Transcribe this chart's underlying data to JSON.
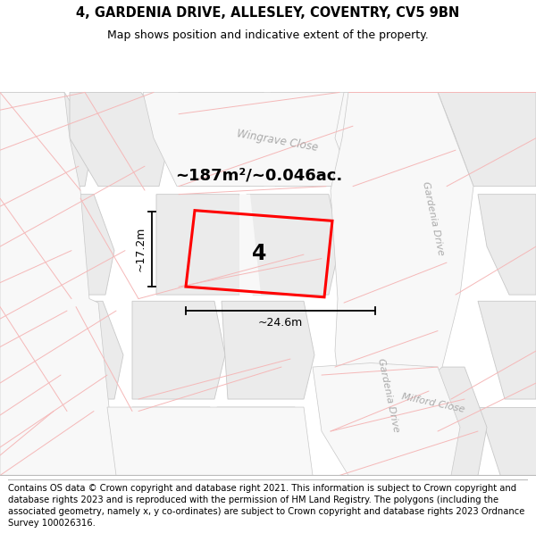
{
  "title": "4, GARDENIA DRIVE, ALLESLEY, COVENTRY, CV5 9BN",
  "subtitle": "Map shows position and indicative extent of the property.",
  "footer": "Contains OS data © Crown copyright and database right 2021. This information is subject to Crown copyright and database rights 2023 and is reproduced with the permission of HM Land Registry. The polygons (including the associated geometry, namely x, y co-ordinates) are subject to Crown copyright and database rights 2023 Ordnance Survey 100026316.",
  "area_label": "~187m²/~0.046ac.",
  "property_number": "4",
  "width_label": "~24.6m",
  "height_label": "~17.2m",
  "map_bg": "#ffffff",
  "block_fill": "#ebebeb",
  "block_edge": "#c8c8c8",
  "road_fill": "#ffffff",
  "road_edge": "#c8c8c8",
  "property_color": "#ff0000",
  "road_label_color": "#aaaaaa",
  "pink_line_color": "#f5b8b8",
  "title_fontsize": 10.5,
  "subtitle_fontsize": 9,
  "footer_fontsize": 7.2
}
